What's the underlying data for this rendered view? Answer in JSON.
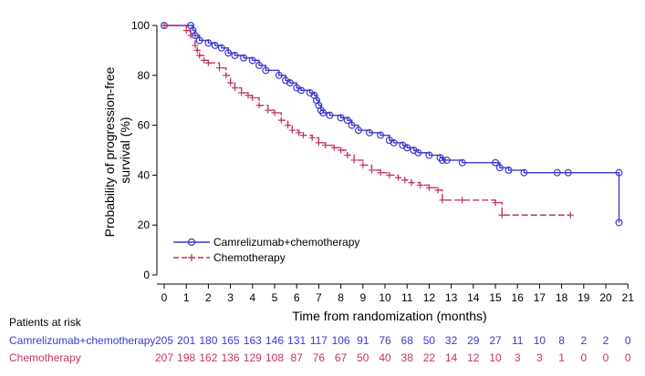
{
  "chart_data": {
    "type": "line",
    "subtype": "kaplan-meier",
    "xlabel": "Time from randomization (months)",
    "ylabel": "Probability of progression-free survival (%)",
    "ylabel_lines": [
      "Probability of progression-free",
      "survival (%)"
    ],
    "xlim": [
      0,
      21
    ],
    "ylim": [
      0,
      100
    ],
    "xticks": [
      0,
      1,
      2,
      3,
      4,
      5,
      6,
      7,
      8,
      9,
      10,
      11,
      12,
      13,
      14,
      15,
      16,
      17,
      18,
      19,
      20,
      21
    ],
    "yticks": [
      0,
      20,
      40,
      60,
      80,
      100
    ],
    "legend_position": "bottom-left",
    "series": [
      {
        "name": "Camrelizumab+chemotherapy",
        "color": "#3a3ad0",
        "marker": "circle",
        "dash": "solid",
        "x": [
          0,
          1.2,
          1.3,
          1.4,
          1.6,
          2.0,
          2.3,
          2.6,
          2.9,
          3.2,
          3.6,
          4.0,
          4.3,
          4.6,
          5.2,
          5.5,
          5.7,
          6.0,
          6.2,
          6.6,
          6.8,
          6.9,
          7.0,
          7.1,
          7.2,
          7.5,
          8.0,
          8.3,
          8.5,
          8.8,
          9.3,
          9.8,
          10.2,
          10.4,
          10.8,
          11.0,
          11.3,
          11.5,
          12.0,
          12.5,
          12.6,
          12.8,
          13.5,
          15.0,
          15.2,
          15.6,
          16.3,
          17.8,
          18.3,
          20.6,
          20.6
        ],
        "y": [
          100,
          100,
          98,
          96,
          94,
          93,
          92,
          91,
          89,
          88,
          87,
          86,
          84,
          82,
          80,
          78,
          77,
          75,
          74,
          73,
          72,
          70,
          68,
          66,
          65,
          64,
          63,
          62,
          60,
          58,
          57,
          56,
          54,
          53,
          52,
          51,
          50,
          49,
          48,
          47,
          46,
          46,
          45,
          45,
          43,
          42,
          41,
          41,
          41,
          41,
          21
        ]
      },
      {
        "name": "Chemotherapy",
        "color": "#c2375a",
        "marker": "plus",
        "dash": "dashed",
        "x": [
          0,
          1.0,
          1.2,
          1.4,
          1.5,
          1.6,
          1.8,
          2.0,
          2.5,
          2.8,
          3.0,
          3.2,
          3.5,
          3.8,
          4.0,
          4.3,
          4.7,
          5.0,
          5.3,
          5.6,
          5.8,
          6.1,
          6.3,
          6.7,
          7.0,
          7.3,
          7.7,
          8.0,
          8.3,
          8.6,
          9.0,
          9.4,
          9.8,
          10.2,
          10.6,
          10.9,
          11.2,
          11.6,
          12.0,
          12.4,
          12.6,
          13.5,
          15.0,
          15.3,
          18.4
        ],
        "y": [
          100,
          98,
          96,
          92,
          90,
          88,
          86,
          85,
          83,
          80,
          77,
          75,
          73,
          72,
          71,
          68,
          66,
          65,
          62,
          60,
          58,
          57,
          56,
          55,
          53,
          52,
          51,
          50,
          48,
          46,
          44,
          42,
          41,
          40,
          39,
          38,
          37,
          36,
          35,
          34,
          30,
          30,
          29,
          24,
          24
        ]
      }
    ],
    "risk_table": {
      "title": "Patients at risk",
      "times": [
        0,
        1,
        2,
        3,
        4,
        5,
        6,
        7,
        8,
        9,
        10,
        11,
        12,
        13,
        14,
        15,
        16,
        17,
        18,
        19,
        20,
        21
      ],
      "rows": [
        {
          "name": "Camrelizumab+chemotherapy",
          "color": "#3a3ad0",
          "values": [
            205,
            201,
            180,
            165,
            163,
            146,
            131,
            117,
            106,
            91,
            76,
            68,
            50,
            32,
            29,
            27,
            11,
            10,
            8,
            2,
            2,
            0
          ]
        },
        {
          "name": "Chemotherapy",
          "color": "#c2375a",
          "values": [
            207,
            198,
            162,
            136,
            129,
            108,
            87,
            76,
            67,
            50,
            40,
            38,
            22,
            14,
            12,
            10,
            3,
            3,
            1,
            0,
            0,
            0
          ]
        }
      ]
    }
  }
}
